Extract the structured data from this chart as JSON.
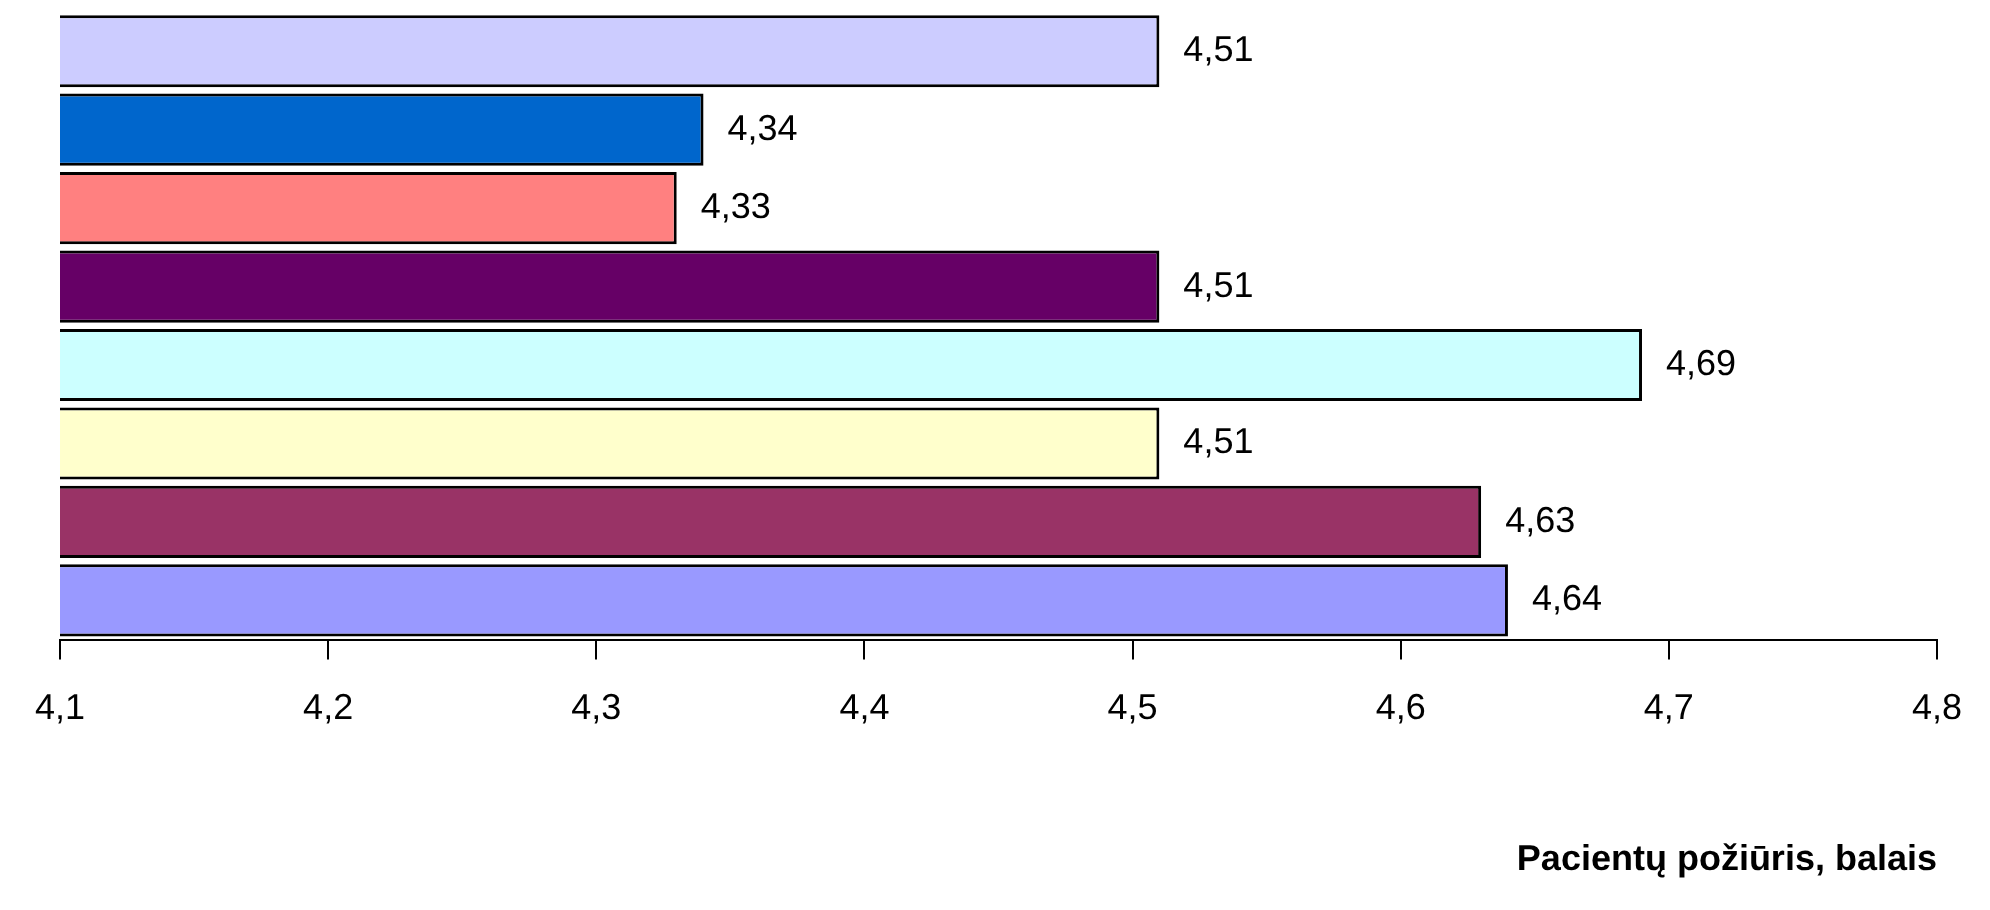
{
  "chart_data": {
    "type": "bar",
    "orientation": "horizontal",
    "xlabel": "Pacientų požiūris, balais",
    "categories": [
      null,
      null,
      null,
      null,
      null,
      null,
      null,
      null
    ],
    "values": [
      4.51,
      4.34,
      4.33,
      4.51,
      4.69,
      4.51,
      4.63,
      4.64
    ],
    "colors": [
      "#ccccff",
      "#0066cc",
      "#ff8080",
      "#660066",
      "#ccffff",
      "#ffffcc",
      "#993366",
      "#9999ff"
    ],
    "value_labels": [
      "4,51",
      "4,34",
      "4,33",
      "4,51",
      "4,69",
      "4,51",
      "4,63",
      "4,64"
    ],
    "xlim": [
      4.1,
      4.8
    ],
    "xticks": [
      {
        "value": 4.1,
        "label": "4,1"
      },
      {
        "value": 4.2,
        "label": "4,2"
      },
      {
        "value": 4.3,
        "label": "4,3"
      },
      {
        "value": 4.4,
        "label": "4,4"
      },
      {
        "value": 4.5,
        "label": "4,5"
      },
      {
        "value": 4.6,
        "label": "4,6"
      },
      {
        "value": 4.7,
        "label": "4,7"
      },
      {
        "value": 4.8,
        "label": "4,8"
      }
    ],
    "grid": false,
    "legend": false
  }
}
